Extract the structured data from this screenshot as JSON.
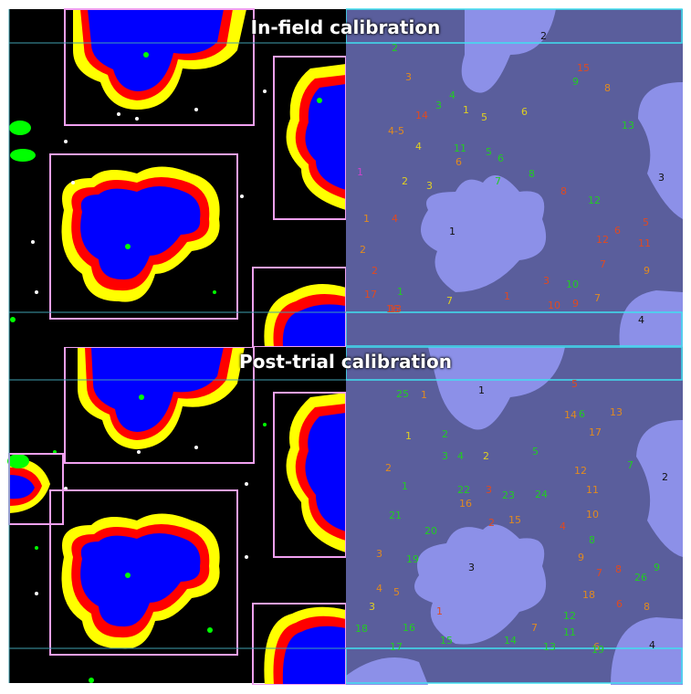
{
  "panels": [
    {
      "title": "In-field calibration",
      "colors": {
        "blue": "#0000ff",
        "red": "#ff0000",
        "yellow": "#ffff00",
        "green": "#00ff00",
        "pink": "#f0a0f0",
        "cyan": "#40e0f0",
        "leaf": "#8c90e8",
        "soil": "#5a5e9c"
      },
      "labels": [
        {
          "t": "2",
          "c": "#22cc22"
        },
        {
          "t": "2",
          "c": "#111111"
        },
        {
          "t": "3",
          "c": "#e08a20"
        },
        {
          "t": "15",
          "c": "#e04a20"
        },
        {
          "t": "9",
          "c": "#22cc22"
        },
        {
          "t": "8",
          "c": "#e08a20"
        },
        {
          "t": "4",
          "c": "#22cc22"
        },
        {
          "t": "3",
          "c": "#22cc22"
        },
        {
          "t": "1",
          "c": "#e0d020"
        },
        {
          "t": "5",
          "c": "#e0d020"
        },
        {
          "t": "6",
          "c": "#e0d020"
        },
        {
          "t": "14",
          "c": "#e04a20"
        },
        {
          "t": "13",
          "c": "#22cc22"
        },
        {
          "t": "4-5",
          "c": "#e08a20"
        },
        {
          "t": "4",
          "c": "#e0d020"
        },
        {
          "t": "11",
          "c": "#22cc22"
        },
        {
          "t": "5",
          "c": "#22cc22"
        },
        {
          "t": "6",
          "c": "#e08a20"
        },
        {
          "t": "6",
          "c": "#22cc22"
        },
        {
          "t": "1",
          "c": "#cc44cc"
        },
        {
          "t": "8",
          "c": "#22cc22"
        },
        {
          "t": "3",
          "c": "#111111"
        },
        {
          "t": "2",
          "c": "#e0d020"
        },
        {
          "t": "3",
          "c": "#e0d020"
        },
        {
          "t": "7",
          "c": "#22cc22"
        },
        {
          "t": "8",
          "c": "#e04a20"
        },
        {
          "t": "12",
          "c": "#22cc22"
        },
        {
          "t": "1",
          "c": "#e08a20"
        },
        {
          "t": "4",
          "c": "#e04a20"
        },
        {
          "t": "1",
          "c": "#111111"
        },
        {
          "t": "6",
          "c": "#e04a20"
        },
        {
          "t": "5",
          "c": "#e04a20"
        },
        {
          "t": "12",
          "c": "#e04a20"
        },
        {
          "t": "11",
          "c": "#e04a20"
        },
        {
          "t": "2",
          "c": "#e08a20"
        },
        {
          "t": "7",
          "c": "#e04a20"
        },
        {
          "t": "9",
          "c": "#e08a20"
        },
        {
          "t": "2",
          "c": "#e04a20"
        },
        {
          "t": "3",
          "c": "#e04a20"
        },
        {
          "t": "10",
          "c": "#22cc22"
        },
        {
          "t": "17",
          "c": "#e04a20"
        },
        {
          "t": "1",
          "c": "#22cc22"
        },
        {
          "t": "1",
          "c": "#e04a20"
        },
        {
          "t": "7",
          "c": "#e0d020"
        },
        {
          "t": "10",
          "c": "#e04a20"
        },
        {
          "t": "7",
          "c": "#e08a20"
        },
        {
          "t": "9",
          "c": "#e04a20"
        },
        {
          "t": "16",
          "c": "#e04a20"
        },
        {
          "t": "13",
          "c": "#e04a20"
        },
        {
          "t": "4",
          "c": "#111111"
        }
      ]
    },
    {
      "title": "Post-trial calibration",
      "colors": {
        "blue": "#0000ff",
        "red": "#ff0000",
        "yellow": "#ffff00",
        "green": "#00ff00",
        "pink": "#f0a0f0",
        "cyan": "#40e0f0",
        "leaf": "#8c90e8",
        "soil": "#5a5e9c"
      },
      "labels": [
        {
          "t": "25",
          "c": "#22cc22"
        },
        {
          "t": "1",
          "c": "#e08a20"
        },
        {
          "t": "1",
          "c": "#111111"
        },
        {
          "t": "5",
          "c": "#e04a20"
        },
        {
          "t": "14",
          "c": "#e08a20"
        },
        {
          "t": "6",
          "c": "#22cc22"
        },
        {
          "t": "13",
          "c": "#e08a20"
        },
        {
          "t": "2",
          "c": "#22cc22"
        },
        {
          "t": "17",
          "c": "#e08a20"
        },
        {
          "t": "1",
          "c": "#e0d020"
        },
        {
          "t": "3",
          "c": "#22cc22"
        },
        {
          "t": "4",
          "c": "#22cc22"
        },
        {
          "t": "2",
          "c": "#e0d020"
        },
        {
          "t": "5",
          "c": "#22cc22"
        },
        {
          "t": "7",
          "c": "#22cc22"
        },
        {
          "t": "2",
          "c": "#e08a20"
        },
        {
          "t": "12",
          "c": "#e08a20"
        },
        {
          "t": "2",
          "c": "#111111"
        },
        {
          "t": "1",
          "c": "#22cc22"
        },
        {
          "t": "22",
          "c": "#22cc22"
        },
        {
          "t": "3",
          "c": "#e04a20"
        },
        {
          "t": "23",
          "c": "#22cc22"
        },
        {
          "t": "11",
          "c": "#e08a20"
        },
        {
          "t": "16",
          "c": "#e08a20"
        },
        {
          "t": "24",
          "c": "#22cc22"
        },
        {
          "t": "21",
          "c": "#22cc22"
        },
        {
          "t": "2",
          "c": "#e04a20"
        },
        {
          "t": "15",
          "c": "#e08a20"
        },
        {
          "t": "10",
          "c": "#e08a20"
        },
        {
          "t": "20",
          "c": "#22cc22"
        },
        {
          "t": "4",
          "c": "#e04a20"
        },
        {
          "t": "8",
          "c": "#22cc22"
        },
        {
          "t": "3",
          "c": "#e08a20"
        },
        {
          "t": "19",
          "c": "#22cc22"
        },
        {
          "t": "3",
          "c": "#111111"
        },
        {
          "t": "9",
          "c": "#e08a20"
        },
        {
          "t": "7",
          "c": "#e04a20"
        },
        {
          "t": "8",
          "c": "#e04a20"
        },
        {
          "t": "26",
          "c": "#22cc22"
        },
        {
          "t": "9",
          "c": "#22cc22"
        },
        {
          "t": "4",
          "c": "#e08a20"
        },
        {
          "t": "5",
          "c": "#e08a20"
        },
        {
          "t": "18",
          "c": "#e08a20"
        },
        {
          "t": "3",
          "c": "#e0d020"
        },
        {
          "t": "1",
          "c": "#e04a20"
        },
        {
          "t": "6",
          "c": "#e04a20"
        },
        {
          "t": "8",
          "c": "#e08a20"
        },
        {
          "t": "12",
          "c": "#22cc22"
        },
        {
          "t": "18",
          "c": "#22cc22"
        },
        {
          "t": "16",
          "c": "#22cc22"
        },
        {
          "t": "7",
          "c": "#e08a20"
        },
        {
          "t": "11",
          "c": "#22cc22"
        },
        {
          "t": "15",
          "c": "#22cc22"
        },
        {
          "t": "14",
          "c": "#22cc22"
        },
        {
          "t": "6",
          "c": "#e08a20"
        },
        {
          "t": "17",
          "c": "#22cc22"
        },
        {
          "t": "13",
          "c": "#22cc22"
        },
        {
          "t": "19",
          "c": "#22cc22"
        },
        {
          "t": "4",
          "c": "#111111"
        }
      ]
    }
  ]
}
